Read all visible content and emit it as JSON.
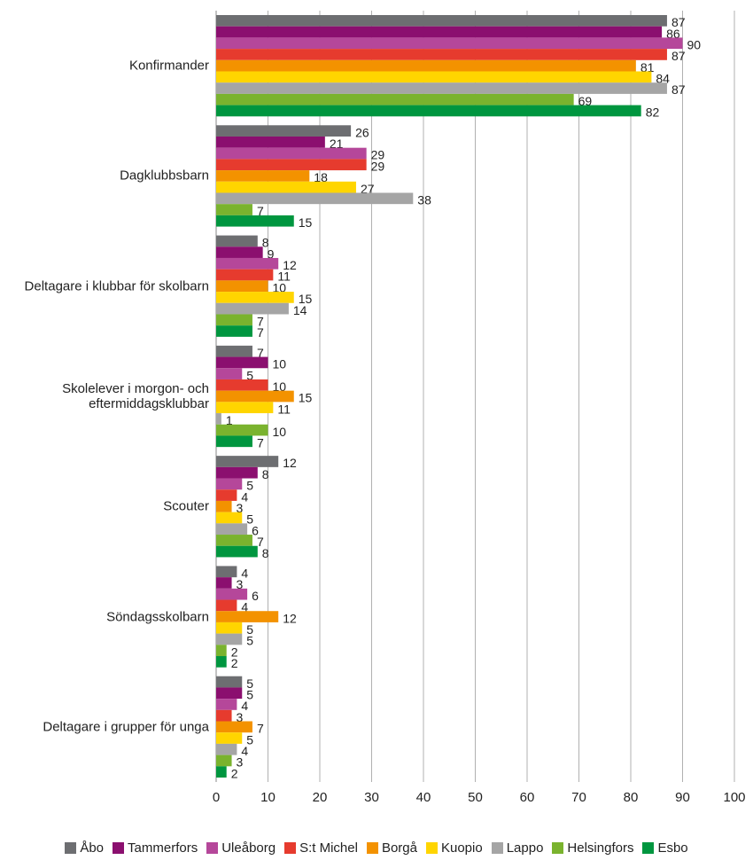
{
  "chart_data": {
    "type": "bar",
    "categories": [
      "Konfirmander",
      "Dagklubbsbarn",
      "Deltagare i klubbar för skolbarn",
      "Skolelever i morgon- och eftermiddagsklubbar",
      "Scouter",
      "Söndagsskolbarn",
      "Deltagare i grupper för unga"
    ],
    "series": [
      {
        "name": "Åbo",
        "color": "#6d6e71",
        "values": [
          87,
          26,
          8,
          7,
          12,
          4,
          5
        ]
      },
      {
        "name": "Tammerfors",
        "color": "#8b0f6f",
        "values": [
          86,
          21,
          9,
          10,
          8,
          3,
          5
        ]
      },
      {
        "name": "Uleåborg",
        "color": "#b5479a",
        "values": [
          90,
          29,
          12,
          5,
          5,
          6,
          4
        ]
      },
      {
        "name": "S:t Michel",
        "color": "#e63b2e",
        "values": [
          87,
          29,
          11,
          10,
          4,
          4,
          3
        ]
      },
      {
        "name": "Borgå",
        "color": "#f39200",
        "values": [
          81,
          18,
          10,
          15,
          3,
          12,
          7
        ]
      },
      {
        "name": "Kuopio",
        "color": "#ffd500",
        "values": [
          84,
          27,
          15,
          11,
          5,
          5,
          5
        ]
      },
      {
        "name": "Lappo",
        "color": "#a5a5a5",
        "values": [
          87,
          38,
          14,
          1,
          6,
          5,
          4
        ]
      },
      {
        "name": "Helsingfors",
        "color": "#7ab32e",
        "values": [
          69,
          7,
          7,
          10,
          7,
          2,
          3
        ]
      },
      {
        "name": "Esbo",
        "color": "#00963f",
        "values": [
          82,
          15,
          7,
          7,
          8,
          2,
          2
        ]
      }
    ],
    "xlim": [
      0,
      100
    ],
    "xticks": [
      0,
      10,
      20,
      30,
      40,
      50,
      60,
      70,
      80,
      90,
      100
    ],
    "grid": true,
    "legend": "bottom"
  }
}
